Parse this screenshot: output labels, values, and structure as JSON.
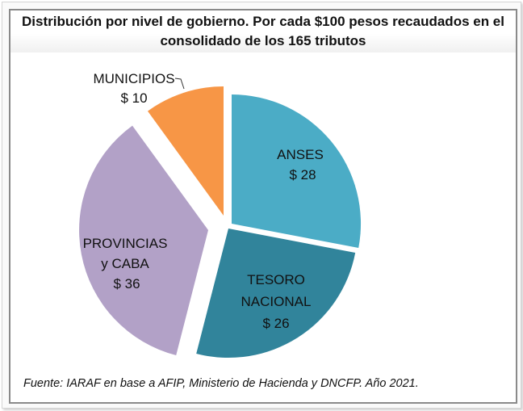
{
  "title": {
    "line1": "Distribución por nivel de gobierno. Por cada $100 pesos recaudados en el",
    "line2": "consolidado de los 165 tributos"
  },
  "source": "Fuente: IARAF en base a AFIP, Ministerio de Hacienda y DNCFP. Año 2021.",
  "chart_data": {
    "type": "pie",
    "title": "Distribución por nivel de gobierno. Por cada $100 pesos recaudados en el consolidado de los 165 tributos",
    "categories": [
      "ANSES",
      "TESORO NACIONAL",
      "PROVINCIAS y CABA",
      "MUNICIPIOS"
    ],
    "values": [
      28,
      26,
      36,
      10
    ],
    "unit": "$",
    "exploded": true,
    "start_angle_deg": 0,
    "direction": "clockwise",
    "slices": [
      {
        "name": "ANSES",
        "value": 28,
        "label_lines": [
          "ANSES",
          "$ 28"
        ],
        "color": "#4BACC6"
      },
      {
        "name": "TESORO NACIONAL",
        "value": 26,
        "label_lines": [
          "TESORO",
          "NACIONAL",
          "$ 26"
        ],
        "color": "#31849B"
      },
      {
        "name": "PROVINCIAS y CABA",
        "value": 36,
        "label_lines": [
          "PROVINCIAS",
          "y CABA",
          "$ 36"
        ],
        "color": "#B2A1C7"
      },
      {
        "name": "MUNICIPIOS",
        "value": 10,
        "label_lines": [
          "MUNICIPIOS",
          "$ 10"
        ],
        "color": "#F79646"
      }
    ],
    "legend": "none",
    "source": "Fuente: IARAF en base a AFIP, Ministerio de Hacienda y DNCFP. Año 2021."
  }
}
